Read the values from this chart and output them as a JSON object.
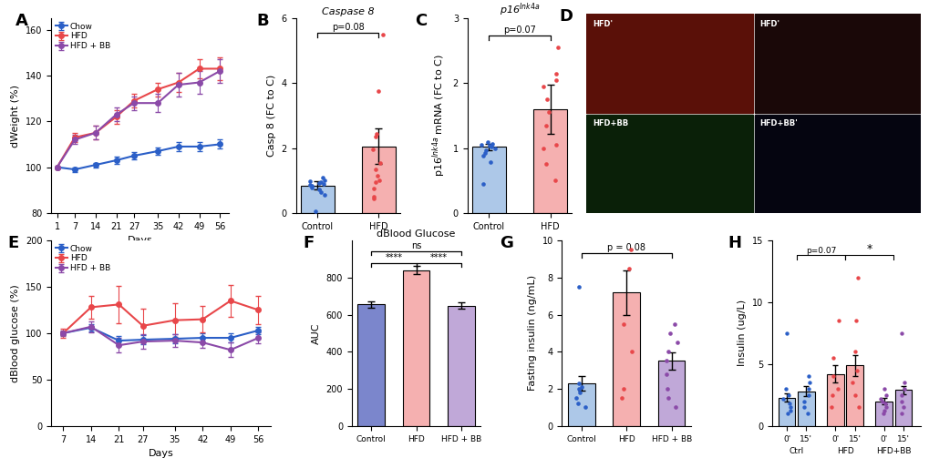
{
  "panel_A": {
    "days": [
      1,
      7,
      14,
      21,
      27,
      35,
      42,
      49,
      56
    ],
    "chow_mean": [
      100,
      99,
      101,
      103,
      105,
      107,
      109,
      109,
      110
    ],
    "chow_sem": [
      0,
      1,
      1,
      1.5,
      1.5,
      1.5,
      2,
      2,
      2
    ],
    "hfd_mean": [
      100,
      113,
      115,
      122,
      129,
      134,
      137,
      143,
      143
    ],
    "hfd_sem": [
      0,
      2,
      3,
      3,
      3,
      3,
      4,
      4,
      5
    ],
    "hfdbb_mean": [
      100,
      112,
      115,
      123,
      128,
      128,
      136,
      137,
      142
    ],
    "hfdbb_sem": [
      0,
      2,
      3,
      3,
      3,
      4,
      5,
      5,
      5
    ],
    "ylabel": "dWeight (%)",
    "xlabel": "Days",
    "ylim": [
      80,
      165
    ],
    "yticks": [
      80,
      100,
      120,
      140,
      160
    ],
    "chow_color": "#2B5FC7",
    "hfd_color": "#E8474A",
    "hfdbb_color": "#8B4AA8"
  },
  "panel_B": {
    "categories": [
      "Control",
      "HFD"
    ],
    "bar_means": [
      0.85,
      2.05
    ],
    "bar_sems": [
      0.12,
      0.55
    ],
    "bar_colors": [
      "#ADC8E8",
      "#F5B0B0"
    ],
    "dot_data_control": [
      0.05,
      0.55,
      0.65,
      0.72,
      0.78,
      0.83,
      0.88,
      0.9,
      0.93,
      0.95,
      0.98,
      1.02,
      1.08
    ],
    "dot_data_hfd": [
      0.45,
      0.5,
      0.75,
      0.95,
      1.0,
      1.15,
      1.35,
      1.55,
      1.95,
      2.35,
      2.45,
      3.75,
      5.5
    ],
    "dot_color_control": "#2B5FC7",
    "dot_color_hfd": "#E8474A",
    "title": "Caspase 8",
    "ylabel": "Casp 8 (FC to C)",
    "ylim": [
      0,
      6
    ],
    "yticks": [
      0,
      2,
      4,
      6
    ],
    "pvalue": "p=0.08"
  },
  "panel_C": {
    "categories": [
      "Control",
      "HFD"
    ],
    "bar_means": [
      1.02,
      1.6
    ],
    "bar_sems": [
      0.05,
      0.38
    ],
    "bar_colors": [
      "#ADC8E8",
      "#F5B0B0"
    ],
    "dot_data_control": [
      0.45,
      0.78,
      0.88,
      0.92,
      0.96,
      0.99,
      1.02,
      1.04,
      1.05,
      1.07,
      1.1
    ],
    "dot_data_hfd": [
      0.5,
      0.75,
      1.0,
      1.05,
      1.35,
      1.55,
      1.75,
      1.95,
      2.05,
      2.15,
      2.55
    ],
    "dot_color_control": "#2B5FC7",
    "dot_color_hfd": "#E8474A",
    "title": "p16$^{Ink4a}$",
    "ylabel": "p16$^{Ink4a}$ mRNA (FC to C)",
    "ylim": [
      0,
      3
    ],
    "yticks": [
      0,
      1,
      2,
      3
    ],
    "pvalue": "p=0.07"
  },
  "panel_D_colors": {
    "top_left": "#6B1A0A",
    "top_right": "#3A0A0A",
    "bot_left": "#0A2A0A",
    "bot_right": "#05050A"
  },
  "panel_E": {
    "days": [
      7,
      14,
      21,
      27,
      35,
      42,
      49,
      56
    ],
    "chow_mean": [
      100,
      106,
      92,
      93,
      94,
      95,
      95,
      103
    ],
    "chow_sem": [
      2,
      4,
      5,
      5,
      5,
      5,
      5,
      4
    ],
    "hfd_mean": [
      100,
      128,
      131,
      108,
      114,
      115,
      135,
      125
    ],
    "hfd_sem": [
      5,
      12,
      20,
      18,
      18,
      14,
      17,
      15
    ],
    "hfdbb_mean": [
      100,
      107,
      87,
      91,
      92,
      90,
      82,
      95
    ],
    "hfdbb_sem": [
      3,
      6,
      8,
      8,
      7,
      6,
      8,
      6
    ],
    "ylabel": "dBlood glucose (%)",
    "xlabel": "Days",
    "ylim": [
      0,
      200
    ],
    "yticks": [
      0,
      50,
      100,
      150,
      200
    ],
    "chow_color": "#2B5FC7",
    "hfd_color": "#E8474A",
    "hfdbb_color": "#8B4AA8"
  },
  "panel_F": {
    "categories": [
      "Control",
      "HFD",
      "HFD + BB"
    ],
    "bar_means": [
      655,
      840,
      648
    ],
    "bar_sems": [
      18,
      22,
      18
    ],
    "bar_colors": [
      "#7B86CC",
      "#F5B0B0",
      "#C0A8D8"
    ],
    "title": "dBlood Glucose",
    "ylabel": "AUC",
    "ylim": [
      0,
      1000
    ],
    "yticks": [
      0,
      200,
      400,
      600,
      800
    ],
    "sig_ctrl_hfd": "****",
    "sig_hfd_hfdbb": "****",
    "sig_ctrl_hfdbb": "ns"
  },
  "panel_G": {
    "categories": [
      "Control",
      "HFD",
      "HFD + BB"
    ],
    "bar_means": [
      2.3,
      7.2,
      3.5
    ],
    "bar_sems": [
      0.4,
      1.2,
      0.45
    ],
    "bar_colors": [
      "#ADC8E8",
      "#F5B0B0",
      "#C0A8D8"
    ],
    "dot_data_control": [
      1.0,
      1.2,
      1.5,
      1.8,
      2.0,
      2.1,
      2.3,
      7.5
    ],
    "dot_data_hfd": [
      1.5,
      2.0,
      4.0,
      5.5,
      8.5,
      9.5
    ],
    "dot_data_hfdbb": [
      1.0,
      1.5,
      2.0,
      2.8,
      3.5,
      4.0,
      4.5,
      5.0,
      5.5
    ],
    "dot_color_control": "#2B5FC7",
    "dot_color_hfd": "#E8474A",
    "dot_color_hfdbb": "#8B4AA8",
    "ylabel": "Fasting insulin (ng/mL)",
    "ylim": [
      0,
      10
    ],
    "yticks": [
      0,
      2,
      4,
      6,
      8,
      10
    ],
    "pvalue": "p = 0.08"
  },
  "panel_H": {
    "groups": [
      "Ctrl",
      "HFD",
      "HFD+BB"
    ],
    "bar_means_0": [
      2.3,
      4.2,
      2.0
    ],
    "bar_means_15": [
      2.8,
      4.9,
      2.9
    ],
    "bar_sems_0": [
      0.35,
      0.7,
      0.25
    ],
    "bar_sems_15": [
      0.4,
      0.85,
      0.35
    ],
    "bar_colors": [
      "#ADC8E8",
      "#F5B0B0",
      "#C0A8D8"
    ],
    "dot_data": {
      "ctrl_0": [
        1.0,
        1.2,
        1.5,
        1.8,
        2.2,
        2.5,
        3.0,
        7.5
      ],
      "ctrl_15": [
        1.0,
        1.5,
        2.0,
        2.5,
        3.0,
        3.5,
        4.0
      ],
      "hfd_0": [
        1.5,
        2.5,
        3.0,
        4.0,
        5.5,
        8.5
      ],
      "hfd_15": [
        1.5,
        2.5,
        3.5,
        4.5,
        6.0,
        8.5,
        12.0
      ],
      "hfdbb_0": [
        1.0,
        1.2,
        1.5,
        1.8,
        2.0,
        2.2,
        2.5,
        3.0
      ],
      "hfdbb_15": [
        1.0,
        1.5,
        2.0,
        2.5,
        3.0,
        3.5,
        7.5
      ]
    },
    "dot_colors": [
      "#2B5FC7",
      "#E8474A",
      "#8B4AA8"
    ],
    "ylabel": "Insulin (ug/L)",
    "ylim": [
      0,
      15
    ],
    "yticks": [
      0,
      5,
      10,
      15
    ],
    "pvalue_ctrl_hfd": "p=0.07",
    "sig_hfd_hfdbb": "*"
  },
  "panel_label_fontsize": 13,
  "axis_fontsize": 8,
  "tick_fontsize": 7
}
